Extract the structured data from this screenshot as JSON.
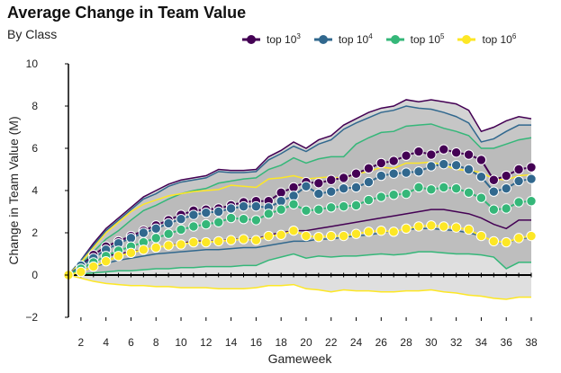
{
  "chart_data": {
    "type": "line",
    "title": "Average Change in Team Value",
    "subtitle": "By Class",
    "xlabel": "Gameweek",
    "ylabel": "Change in Team Value (M)",
    "xlim": [
      1,
      38
    ],
    "ylim": [
      -2,
      10
    ],
    "x_ticks": [
      2,
      4,
      6,
      8,
      10,
      12,
      14,
      16,
      18,
      20,
      22,
      24,
      26,
      28,
      30,
      32,
      34,
      36,
      38
    ],
    "y_ticks": [
      -2,
      0,
      2,
      4,
      6,
      8,
      10
    ],
    "legend_position": "top-right",
    "series": [
      {
        "name": "top 10^3",
        "legend_base": "top 10",
        "legend_exp": "3",
        "color": "#440154",
        "mean": [
          0,
          0.45,
          0.95,
          1.35,
          1.6,
          1.85,
          2.1,
          2.35,
          2.6,
          2.85,
          3.05,
          3.1,
          3.15,
          3.3,
          3.45,
          3.5,
          3.5,
          3.9,
          4.15,
          4.4,
          4.35,
          4.5,
          4.6,
          4.8,
          5.05,
          5.3,
          5.4,
          5.65,
          5.85,
          5.7,
          5.95,
          5.8,
          5.7,
          5.45,
          4.5,
          4.7,
          5.0,
          5.1
        ],
        "upper": [
          0,
          0.7,
          1.5,
          2.2,
          2.7,
          3.2,
          3.7,
          4.0,
          4.3,
          4.5,
          4.6,
          4.7,
          5.0,
          4.95,
          4.95,
          5.0,
          5.6,
          5.9,
          6.3,
          6.0,
          6.4,
          6.6,
          7.1,
          7.4,
          7.7,
          7.9,
          8.0,
          8.3,
          8.2,
          8.3,
          8.2,
          8.1,
          7.8,
          6.8,
          7.0,
          7.3,
          7.5,
          7.4
        ],
        "lower": [
          0,
          0.3,
          0.6,
          0.9,
          1.0,
          1.1,
          1.2,
          1.3,
          1.4,
          1.5,
          1.6,
          1.6,
          1.6,
          1.7,
          1.7,
          1.7,
          1.9,
          2.0,
          2.1,
          2.1,
          2.2,
          2.3,
          2.4,
          2.5,
          2.6,
          2.7,
          2.8,
          2.9,
          3.0,
          3.1,
          3.1,
          3.0,
          2.9,
          2.7,
          2.4,
          2.2,
          2.6,
          2.6
        ]
      },
      {
        "name": "top 10^4",
        "legend_base": "top 10",
        "legend_exp": "4",
        "color": "#31688e",
        "mean": [
          0,
          0.45,
          0.8,
          1.2,
          1.5,
          1.75,
          2.0,
          2.2,
          2.45,
          2.65,
          2.85,
          2.95,
          3.0,
          3.15,
          3.25,
          3.25,
          3.2,
          3.5,
          3.75,
          4.2,
          3.85,
          3.95,
          4.1,
          4.15,
          4.4,
          4.7,
          4.8,
          4.85,
          4.9,
          5.15,
          5.25,
          5.2,
          5.0,
          4.65,
          3.95,
          4.1,
          4.45,
          4.55
        ],
        "upper": [
          0,
          0.7,
          1.4,
          2.1,
          2.6,
          3.1,
          3.6,
          3.85,
          4.2,
          4.4,
          4.5,
          4.6,
          4.9,
          4.85,
          4.85,
          4.9,
          5.45,
          5.75,
          6.1,
          5.85,
          6.2,
          6.4,
          6.9,
          7.2,
          7.45,
          7.7,
          7.8,
          8.0,
          7.9,
          7.85,
          7.7,
          7.5,
          7.2,
          6.3,
          6.45,
          6.8,
          7.1,
          7.1
        ],
        "lower": [
          0,
          0.2,
          0.4,
          0.55,
          0.7,
          0.8,
          0.9,
          1.0,
          1.05,
          1.1,
          1.15,
          1.2,
          1.2,
          1.25,
          1.3,
          1.3,
          1.4,
          1.5,
          1.6,
          1.6,
          1.7,
          1.7,
          1.8,
          1.85,
          1.9,
          2.0,
          2.1,
          2.15,
          2.2,
          2.2,
          2.15,
          2.1,
          2.0,
          1.85,
          1.6,
          1.5,
          1.75,
          1.75
        ]
      },
      {
        "name": "top 10^5",
        "legend_base": "top 10",
        "legend_exp": "5",
        "color": "#35b779",
        "mean": [
          0,
          0.3,
          0.6,
          0.9,
          1.15,
          1.35,
          1.55,
          1.75,
          1.95,
          2.15,
          2.3,
          2.4,
          2.5,
          2.7,
          2.65,
          2.6,
          2.9,
          3.1,
          3.35,
          3.05,
          3.1,
          3.2,
          3.25,
          3.3,
          3.55,
          3.7,
          3.8,
          3.85,
          4.15,
          4.05,
          4.15,
          4.1,
          3.9,
          3.65,
          3.1,
          3.15,
          3.45,
          3.5
        ],
        "upper": [
          0,
          0.5,
          1.1,
          1.7,
          2.1,
          2.6,
          3.05,
          3.3,
          3.6,
          3.85,
          4.0,
          4.1,
          4.35,
          4.45,
          4.55,
          4.6,
          5.0,
          5.2,
          5.55,
          5.3,
          5.5,
          5.6,
          5.6,
          6.2,
          6.5,
          6.75,
          6.8,
          7.05,
          7.1,
          7.15,
          6.95,
          6.8,
          6.6,
          6.0,
          6.0,
          6.2,
          6.4,
          6.5
        ],
        "lower": [
          0,
          0.05,
          0.1,
          0.15,
          0.2,
          0.2,
          0.25,
          0.3,
          0.3,
          0.35,
          0.35,
          0.4,
          0.4,
          0.4,
          0.45,
          0.45,
          0.7,
          0.85,
          1.0,
          0.8,
          0.9,
          0.85,
          0.9,
          0.9,
          0.95,
          1.0,
          0.95,
          1.0,
          1.1,
          1.1,
          1.05,
          1.0,
          1.0,
          0.95,
          0.85,
          0.3,
          0.6,
          0.6
        ]
      },
      {
        "name": "top 10^6",
        "legend_base": "top 10",
        "legend_exp": "6",
        "color": "#fde725",
        "mean": [
          0,
          0.15,
          0.4,
          0.65,
          0.9,
          1.05,
          1.2,
          1.3,
          1.4,
          1.45,
          1.55,
          1.55,
          1.6,
          1.65,
          1.7,
          1.65,
          1.85,
          1.9,
          2.1,
          1.85,
          1.8,
          1.85,
          1.85,
          1.95,
          2.05,
          2.1,
          2.05,
          2.2,
          2.3,
          2.35,
          2.3,
          2.25,
          2.15,
          1.85,
          1.6,
          1.55,
          1.75,
          1.85
        ],
        "upper": [
          0,
          0.6,
          1.3,
          2.0,
          2.5,
          3.0,
          3.35,
          3.55,
          3.75,
          3.85,
          3.95,
          4.0,
          4.05,
          4.25,
          4.2,
          4.15,
          4.55,
          4.6,
          4.7,
          4.55,
          4.6,
          4.65,
          4.55,
          4.8,
          4.9,
          5.1,
          5.05,
          5.3,
          5.3,
          5.35,
          5.2,
          5.0,
          4.95,
          4.85,
          4.55,
          4.5,
          4.7,
          4.75
        ],
        "lower": [
          0,
          -0.15,
          -0.3,
          -0.4,
          -0.45,
          -0.5,
          -0.5,
          -0.55,
          -0.55,
          -0.6,
          -0.6,
          -0.6,
          -0.65,
          -0.65,
          -0.65,
          -0.6,
          -0.5,
          -0.5,
          -0.45,
          -0.65,
          -0.7,
          -0.8,
          -0.7,
          -0.75,
          -0.75,
          -0.8,
          -0.8,
          -0.75,
          -0.75,
          -0.7,
          -0.8,
          -0.85,
          -0.95,
          -1.0,
          -1.1,
          -1.15,
          -1.05,
          -1.05
        ]
      }
    ]
  }
}
